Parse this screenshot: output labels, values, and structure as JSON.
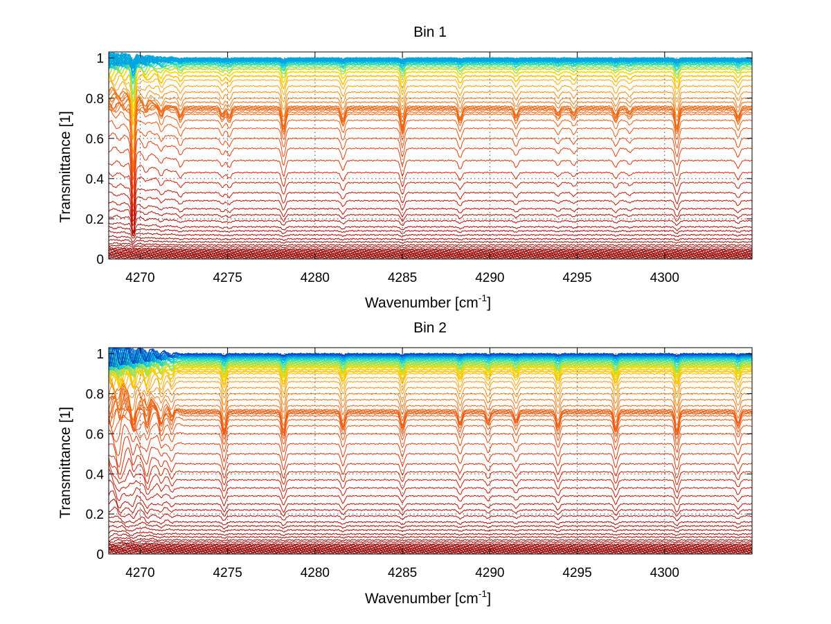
{
  "chart_data": [
    {
      "type": "line",
      "title": "Bin 1",
      "xlabel": "Wavenumber [cm",
      "xlabel_sup": "-1",
      "xlabel_end": "]",
      "ylabel": "Transmittance [1]",
      "xlim": [
        4268.2,
        4305
      ],
      "ylim": [
        0,
        1.03
      ],
      "xticks": [
        4270,
        4275,
        4280,
        4285,
        4290,
        4295,
        4300
      ],
      "yticks": [
        0,
        0.2,
        0.4,
        0.6,
        0.8,
        1
      ],
      "ytick_labels": [
        "0",
        "0.2",
        "0.4",
        "0.6",
        "0.8",
        "1"
      ],
      "grid": true,
      "num_series": 60,
      "series_levels": [
        0.005,
        0.01,
        0.014,
        0.018,
        0.022,
        0.026,
        0.03,
        0.035,
        0.04,
        0.045,
        0.05,
        0.06,
        0.07,
        0.085,
        0.1,
        0.12,
        0.14,
        0.16,
        0.19,
        0.22,
        0.25,
        0.29,
        0.33,
        0.38,
        0.43,
        0.49,
        0.55,
        0.6,
        0.65,
        0.69,
        0.72,
        0.73,
        0.74,
        0.745,
        0.75,
        0.755,
        0.76,
        0.78,
        0.8,
        0.83,
        0.86,
        0.89,
        0.91,
        0.93,
        0.945,
        0.955,
        0.965,
        0.97,
        0.975,
        0.98,
        0.983,
        0.986,
        0.988,
        0.99,
        0.992,
        0.994,
        0.996,
        0.997,
        0.998,
        0.999
      ],
      "absorption_lines": [
        {
          "x": 4269.6,
          "depth": 0.55,
          "width": 0.12
        },
        {
          "x": 4270.3,
          "depth": 0.05,
          "width": 0.15
        },
        {
          "x": 4271.2,
          "depth": 0.07,
          "width": 0.15
        },
        {
          "x": 4272.3,
          "depth": 0.07,
          "width": 0.15
        },
        {
          "x": 4274.7,
          "depth": 0.06,
          "width": 0.15
        },
        {
          "x": 4275.1,
          "depth": 0.07,
          "width": 0.15
        },
        {
          "x": 4278.2,
          "depth": 0.16,
          "width": 0.15
        },
        {
          "x": 4281.6,
          "depth": 0.1,
          "width": 0.15
        },
        {
          "x": 4285.0,
          "depth": 0.16,
          "width": 0.15
        },
        {
          "x": 4288.3,
          "depth": 0.09,
          "width": 0.15
        },
        {
          "x": 4291.5,
          "depth": 0.07,
          "width": 0.15
        },
        {
          "x": 4293.9,
          "depth": 0.05,
          "width": 0.15
        },
        {
          "x": 4294.8,
          "depth": 0.05,
          "width": 0.15
        },
        {
          "x": 4297.2,
          "depth": 0.07,
          "width": 0.15
        },
        {
          "x": 4298.0,
          "depth": 0.04,
          "width": 0.15
        },
        {
          "x": 4300.7,
          "depth": 0.16,
          "width": 0.15
        },
        {
          "x": 4304.2,
          "depth": 0.08,
          "width": 0.15
        }
      ]
    },
    {
      "type": "line",
      "title": "Bin 2",
      "xlabel": "Wavenumber [cm",
      "xlabel_sup": "-1",
      "xlabel_end": "]",
      "ylabel": "Transmittance [1]",
      "xlim": [
        4268.2,
        4305
      ],
      "ylim": [
        0,
        1.03
      ],
      "xticks": [
        4270,
        4275,
        4280,
        4285,
        4290,
        4295,
        4300
      ],
      "yticks": [
        0,
        0.2,
        0.4,
        0.6,
        0.8,
        1
      ],
      "ytick_labels": [
        "0",
        "0.2",
        "0.4",
        "0.6",
        "0.8",
        "1"
      ],
      "grid": true,
      "num_series": 64,
      "series_levels": [
        0.005,
        0.01,
        0.014,
        0.018,
        0.022,
        0.026,
        0.03,
        0.035,
        0.04,
        0.045,
        0.05,
        0.06,
        0.07,
        0.085,
        0.1,
        0.12,
        0.14,
        0.16,
        0.19,
        0.22,
        0.25,
        0.29,
        0.33,
        0.37,
        0.41,
        0.45,
        0.5,
        0.55,
        0.6,
        0.64,
        0.67,
        0.69,
        0.7,
        0.705,
        0.71,
        0.715,
        0.72,
        0.74,
        0.77,
        0.8,
        0.83,
        0.86,
        0.88,
        0.9,
        0.91,
        0.92,
        0.93,
        0.935,
        0.94,
        0.945,
        0.95,
        0.955,
        0.96,
        0.965,
        0.97,
        0.975,
        0.978,
        0.981,
        0.984,
        0.987,
        0.99,
        0.993,
        0.996,
        0.999
      ],
      "absorption_lines": [
        {
          "x": 4268.8,
          "depth": 0.1,
          "width": 0.15
        },
        {
          "x": 4269.6,
          "depth": 0.12,
          "width": 0.15
        },
        {
          "x": 4270.4,
          "depth": 0.12,
          "width": 0.15
        },
        {
          "x": 4271.2,
          "depth": 0.1,
          "width": 0.15
        },
        {
          "x": 4271.8,
          "depth": 0.08,
          "width": 0.15
        },
        {
          "x": 4274.8,
          "depth": 0.16,
          "width": 0.15
        },
        {
          "x": 4278.2,
          "depth": 0.16,
          "width": 0.15
        },
        {
          "x": 4281.6,
          "depth": 0.12,
          "width": 0.15
        },
        {
          "x": 4285.0,
          "depth": 0.12,
          "width": 0.15
        },
        {
          "x": 4288.3,
          "depth": 0.1,
          "width": 0.15
        },
        {
          "x": 4289.9,
          "depth": 0.08,
          "width": 0.15
        },
        {
          "x": 4291.5,
          "depth": 0.08,
          "width": 0.15
        },
        {
          "x": 4293.9,
          "depth": 0.12,
          "width": 0.15
        },
        {
          "x": 4297.2,
          "depth": 0.14,
          "width": 0.15
        },
        {
          "x": 4300.7,
          "depth": 0.16,
          "width": 0.15
        },
        {
          "x": 4304.2,
          "depth": 0.1,
          "width": 0.15
        }
      ]
    }
  ]
}
